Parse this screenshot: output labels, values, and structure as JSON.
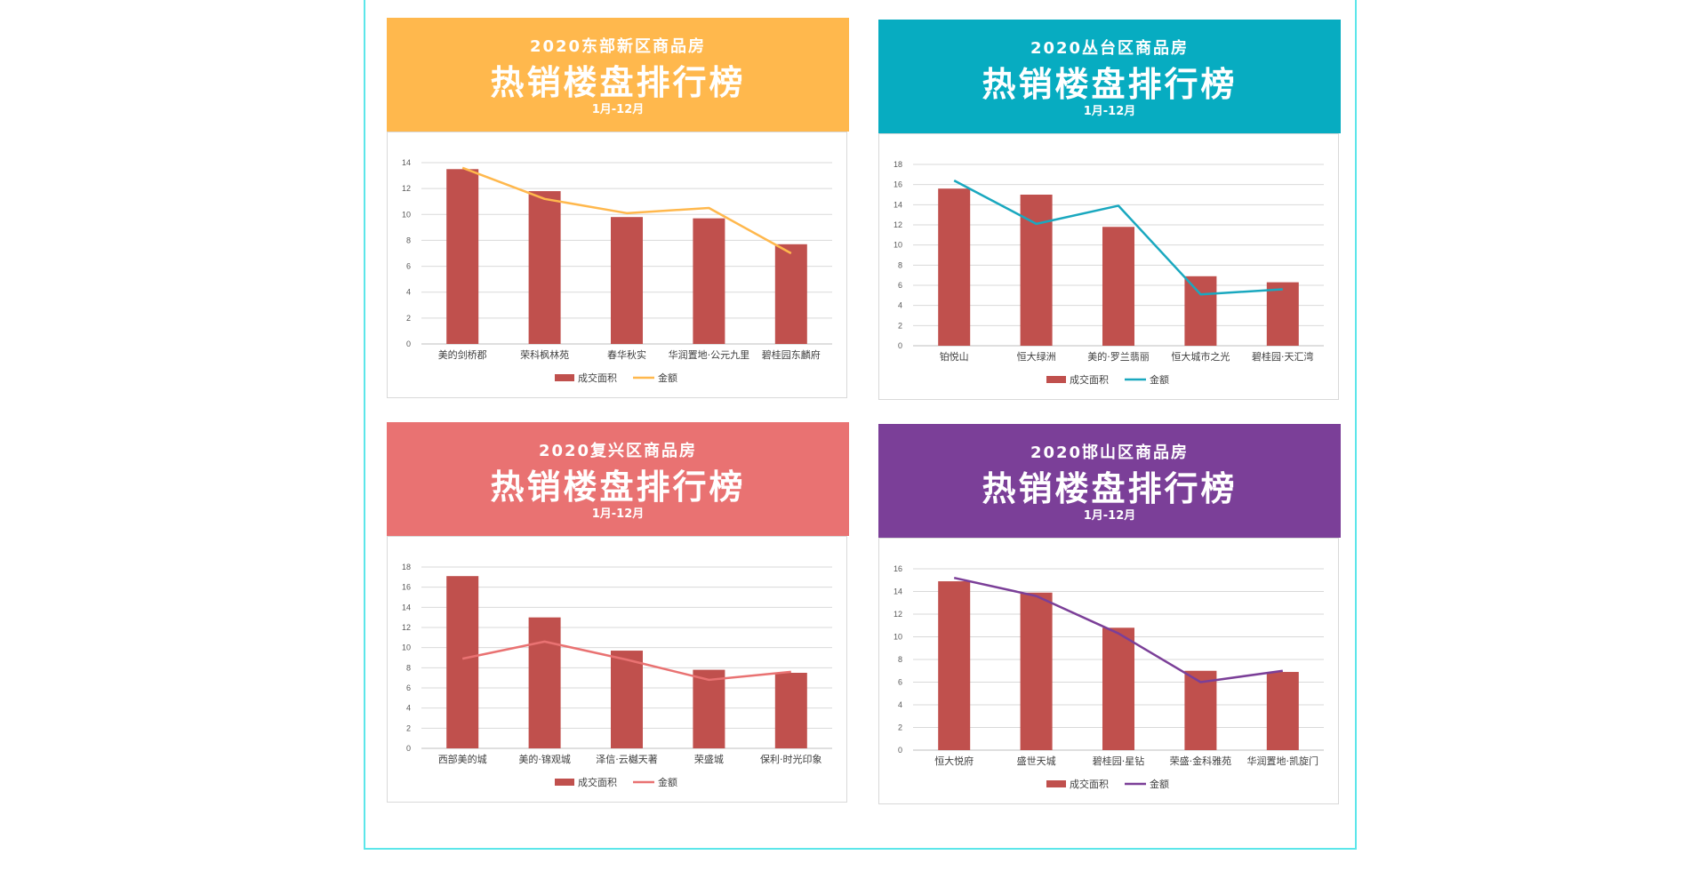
{
  "period_label": "1月-12月",
  "headline": "热销楼盘排行榜",
  "legend": {
    "bar": "成交面积",
    "line": "金额"
  },
  "bar_color": "#c0504d",
  "panels": [
    {
      "subtitle": "2020东部新区商品房",
      "header_color": "#ffb84d",
      "line_color": "#ffb84d",
      "chart_data": {
        "type": "bar",
        "categories": [
          "美的剑桥郡",
          "荣科枫林苑",
          "春华秋实",
          "华润置地·公元九里",
          "碧桂园东麟府"
        ],
        "series": [
          {
            "name": "成交面积",
            "type": "bar",
            "values": [
              13.5,
              11.8,
              9.8,
              9.7,
              7.7
            ]
          },
          {
            "name": "金额",
            "type": "line",
            "values": [
              13.6,
              11.2,
              10.1,
              10.5,
              7.0
            ]
          }
        ],
        "ylim": [
          0,
          14
        ],
        "yticks": [
          0,
          2,
          4,
          6,
          8,
          10,
          12,
          14
        ]
      }
    },
    {
      "subtitle": "2020丛台区商品房",
      "header_color": "#07acc1",
      "line_color": "#1aa8bf",
      "chart_data": {
        "type": "bar",
        "categories": [
          "铂悦山",
          "恒大绿洲",
          "美的·罗兰翡丽",
          "恒大城市之光",
          "碧桂园·天汇湾"
        ],
        "series": [
          {
            "name": "成交面积",
            "type": "bar",
            "values": [
              15.6,
              15.0,
              11.8,
              6.9,
              6.3
            ]
          },
          {
            "name": "金额",
            "type": "line",
            "values": [
              16.4,
              12.1,
              13.9,
              5.1,
              5.6
            ]
          }
        ],
        "ylim": [
          0,
          18
        ],
        "yticks": [
          0,
          2,
          4,
          6,
          8,
          10,
          12,
          14,
          16,
          18
        ]
      }
    },
    {
      "subtitle": "2020复兴区商品房",
      "header_color": "#e97272",
      "line_color": "#e97272",
      "chart_data": {
        "type": "bar",
        "categories": [
          "西部美的城",
          "美的·锦观城",
          "泽信·云樾天著",
          "荣盛城",
          "保利·时光印象"
        ],
        "series": [
          {
            "name": "成交面积",
            "type": "bar",
            "values": [
              17.1,
              13.0,
              9.7,
              7.8,
              7.5
            ]
          },
          {
            "name": "金额",
            "type": "line",
            "values": [
              8.9,
              10.6,
              8.8,
              6.8,
              7.6
            ]
          }
        ],
        "ylim": [
          0,
          18
        ],
        "yticks": [
          0,
          2,
          4,
          6,
          8,
          10,
          12,
          14,
          16,
          18
        ]
      }
    },
    {
      "subtitle": "2020邯山区商品房",
      "header_color": "#7b3f98",
      "line_color": "#7b3f98",
      "chart_data": {
        "type": "bar",
        "categories": [
          "恒大悦府",
          "盛世天城",
          "碧桂园·星钻",
          "荣盛·金科雅苑",
          "华润置地·凯旋门"
        ],
        "series": [
          {
            "name": "成交面积",
            "type": "bar",
            "values": [
              14.9,
              13.9,
              10.8,
              7.0,
              6.9
            ]
          },
          {
            "name": "金额",
            "type": "line",
            "values": [
              15.2,
              13.6,
              10.3,
              6.0,
              7.0
            ]
          }
        ],
        "ylim": [
          0,
          16
        ],
        "yticks": [
          0,
          2,
          4,
          6,
          8,
          10,
          12,
          14,
          16
        ]
      }
    }
  ]
}
